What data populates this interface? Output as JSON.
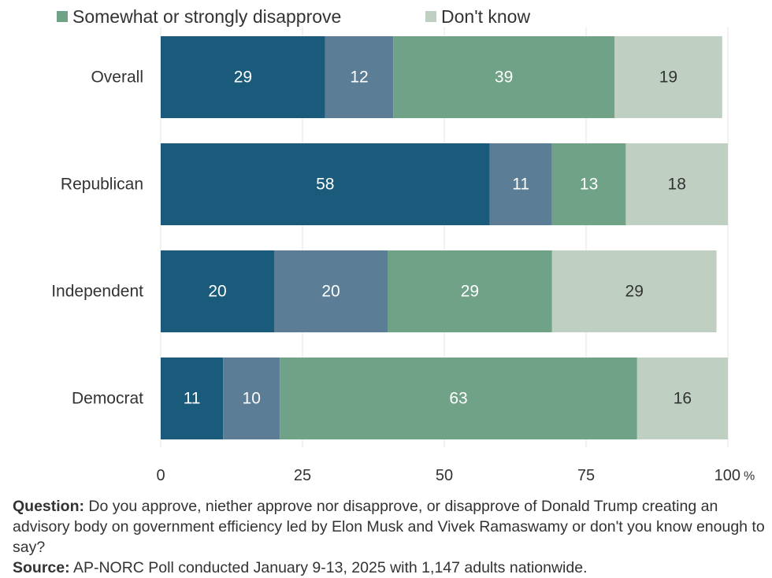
{
  "legend": {
    "disapprove_label": "Somewhat or strongly disapprove",
    "dontknow_label": "Don't know",
    "disapprove_color": "#6fa287",
    "dontknow_color": "#bfd0c2"
  },
  "chart_data": {
    "type": "bar",
    "orientation": "horizontal",
    "stacked": true,
    "categories": [
      "Overall",
      "Republican",
      "Independent",
      "Democrat"
    ],
    "series": [
      {
        "values": [
          29,
          58,
          20,
          11
        ],
        "color": "#1a5b7c"
      },
      {
        "values": [
          12,
          11,
          20,
          10
        ],
        "color": "#5b7e96"
      },
      {
        "name": "Somewhat or strongly disapprove",
        "values": [
          39,
          13,
          29,
          63
        ],
        "color": "#6fa287"
      },
      {
        "name": "Don't know",
        "values": [
          19,
          18,
          29,
          16
        ],
        "color": "#bfd0c2"
      }
    ],
    "label_colors": [
      "#ffffff",
      "#ffffff",
      "#ffffff",
      "#333333"
    ],
    "xlim": [
      0,
      100
    ],
    "xticks": [
      0,
      25,
      50,
      75,
      100
    ],
    "xtick_labels": [
      "0",
      "25",
      "50",
      "75",
      "100"
    ],
    "x_unit": "%",
    "grid": true
  },
  "notes": {
    "question_label": "Question:",
    "question_text": "Do you approve, niether approve nor disapprove, or disapprove of Donald Trump creating an advisory body on government efficiency led by Elon Musk and Vivek Ramaswamy or don't you know enough to say?",
    "source_label": "Source:",
    "source_text": "AP-NORC Poll conducted January 9-13, 2025 with 1,147 adults nationwide."
  }
}
